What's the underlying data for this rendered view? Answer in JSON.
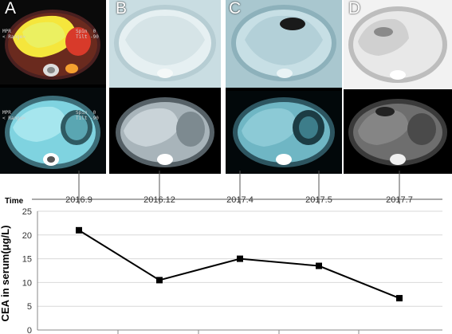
{
  "panels": [
    {
      "label": "A",
      "overlay_lines": [
        "MPR",
        "< Range>",
        "Spin  0",
        "Tilt -90"
      ],
      "overlay_lines_bottom": [
        "MPR",
        "< Range>",
        "Spin  0",
        "Tilt -90"
      ]
    },
    {
      "label": "B",
      "overlay_lines": [],
      "overlay_lines_bottom": []
    },
    {
      "label": "C",
      "overlay_lines": [],
      "overlay_lines_bottom": []
    },
    {
      "label": "D",
      "overlay_lines": [],
      "overlay_lines_bottom": []
    }
  ],
  "colors": {
    "petct_hot": "#f5e63c",
    "petct_red": "#d83a2a",
    "ct_cyan": "#7fd3e0",
    "line": "#000000",
    "marker": "#000000",
    "grid": "#d9d9d9"
  },
  "chart_data": {
    "type": "line",
    "time_label": "Time",
    "categories": [
      "2016.9",
      "2016.12",
      "2017.4",
      "2017.5",
      "2017.7"
    ],
    "values": [
      21,
      10.5,
      15,
      13.5,
      6.7
    ],
    "ylabel": "CEA in serum(μg/L)",
    "ylim": [
      0,
      25
    ],
    "yticks": [
      "0",
      "5",
      "10",
      "15",
      "20",
      "25"
    ],
    "grid": true,
    "marker": "square"
  }
}
